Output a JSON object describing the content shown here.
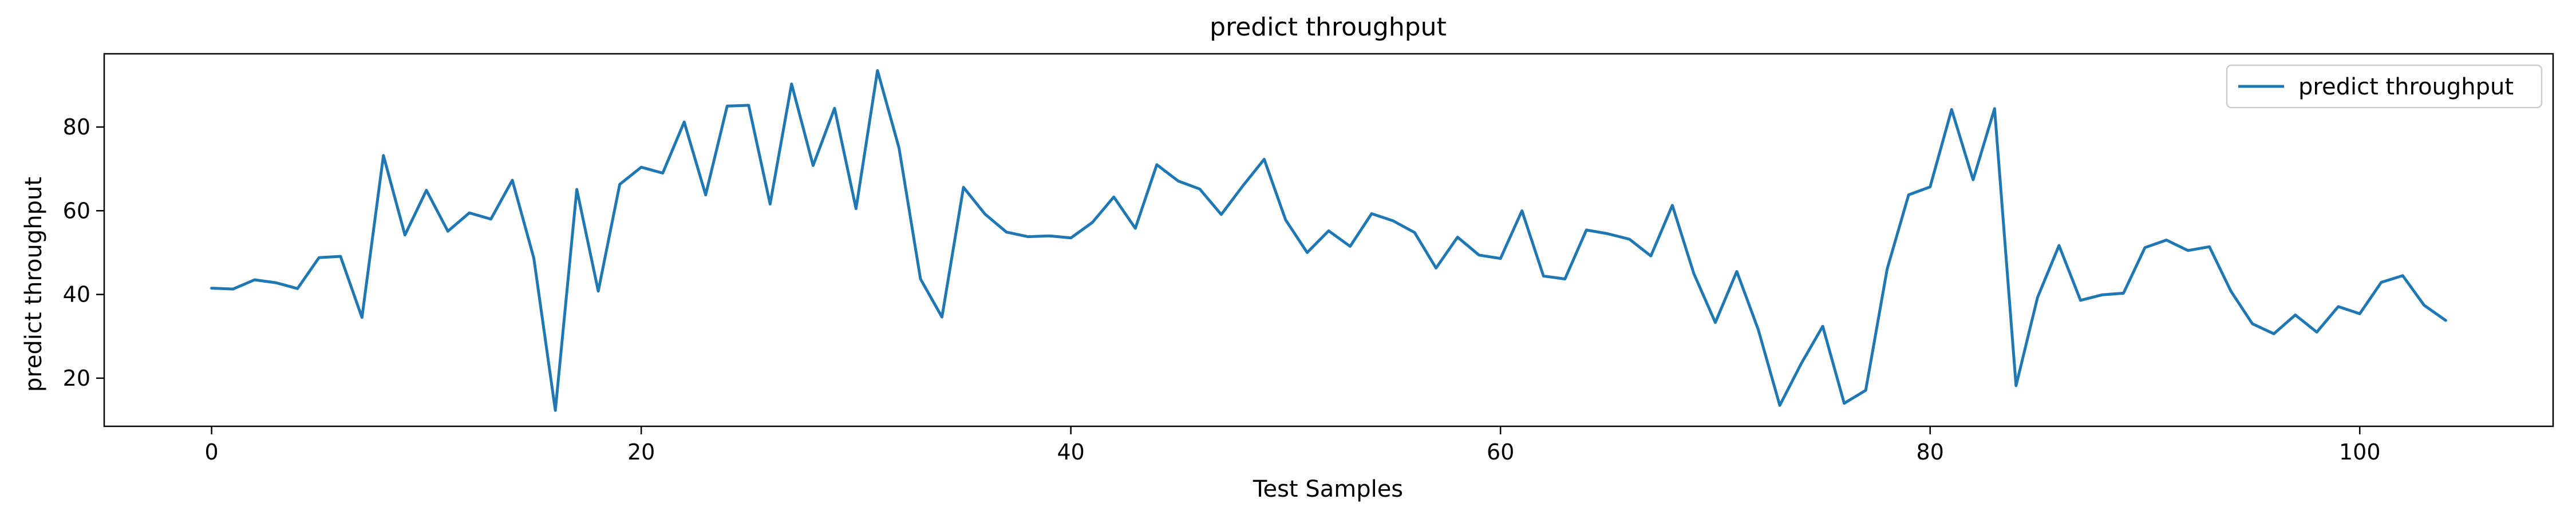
{
  "chart_data": {
    "type": "line",
    "title": "predict throughput",
    "xlabel": "Test Samples",
    "ylabel": "predict throughput",
    "xlim": [
      -5,
      109
    ],
    "ylim": [
      8.5,
      97.5
    ],
    "xticks": [
      0,
      20,
      40,
      60,
      80,
      100
    ],
    "yticks": [
      20,
      40,
      60,
      80
    ],
    "grid": false,
    "legend_position": "top-right",
    "series": [
      {
        "name": "predict throughput",
        "color": "#1f77b4",
        "x": [
          0,
          1,
          2,
          3,
          4,
          5,
          6,
          7,
          8,
          9,
          10,
          11,
          12,
          13,
          14,
          15,
          16,
          17,
          18,
          19,
          20,
          21,
          22,
          23,
          24,
          25,
          26,
          27,
          28,
          29,
          30,
          31,
          32,
          33,
          34,
          35,
          36,
          37,
          38,
          39,
          40,
          41,
          42,
          43,
          44,
          45,
          46,
          47,
          48,
          49,
          50,
          51,
          52,
          53,
          54,
          55,
          56,
          57,
          58,
          59,
          60,
          61,
          62,
          63,
          64,
          65,
          66,
          67,
          68,
          69,
          70,
          71,
          72,
          73,
          74,
          75,
          76,
          77,
          78,
          79,
          80,
          81,
          82,
          83,
          84,
          85,
          86,
          87,
          88,
          89,
          90,
          91,
          92,
          93,
          94,
          95,
          96,
          97,
          98,
          99,
          100,
          101,
          102,
          103,
          104
        ],
        "y": [
          41.5,
          41.3,
          43.5,
          42.8,
          41.4,
          48.8,
          49.1,
          34.5,
          73.2,
          54.2,
          64.9,
          55.1,
          59.5,
          58.0,
          67.3,
          48.7,
          12.3,
          65.1,
          40.8,
          66.3,
          70.4,
          69.0,
          81.2,
          63.8,
          85.0,
          85.2,
          61.6,
          90.3,
          70.8,
          84.5,
          60.5,
          93.5,
          75.0,
          43.7,
          34.6,
          65.6,
          59.2,
          54.9,
          53.8,
          54.0,
          53.5,
          57.2,
          63.3,
          55.8,
          71.0,
          67.1,
          65.2,
          59.1,
          65.9,
          72.3,
          57.8,
          50.0,
          55.2,
          51.5,
          59.3,
          57.6,
          54.8,
          46.3,
          53.7,
          49.4,
          48.6,
          60.0,
          44.4,
          43.7,
          55.4,
          54.5,
          53.2,
          49.2,
          61.3,
          45.0,
          33.3,
          45.5,
          31.6,
          13.5,
          23.5,
          32.4,
          14.0,
          17.1,
          46.1,
          63.8,
          65.7,
          84.2,
          67.4,
          84.4,
          18.2,
          39.3,
          51.7,
          38.6,
          39.9,
          40.3,
          51.2,
          53.0,
          50.5,
          51.4,
          40.8,
          33.0,
          30.6,
          35.1,
          31.0,
          37.1,
          35.4,
          42.9,
          44.5,
          37.4,
          33.8
        ]
      }
    ]
  }
}
